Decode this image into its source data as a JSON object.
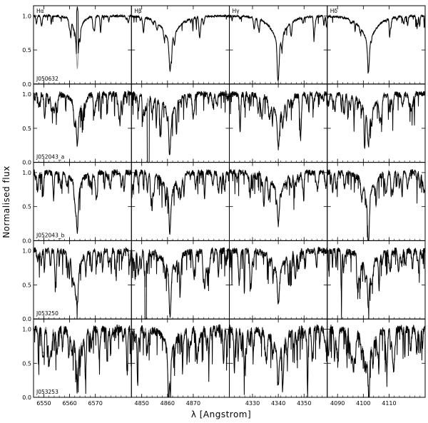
{
  "chart_data": {
    "type": "line",
    "ylabel": "Normalised flux",
    "xlabel": "λ  [Angstrom]",
    "ylim": [
      0.0,
      1.15
    ],
    "yticks": [
      "0.0",
      "0.5",
      "1.0"
    ],
    "grid": false,
    "columns": [
      {
        "line": "Hα",
        "xlim": [
          6546,
          6584
        ],
        "ticks": [
          6550,
          6560,
          6570
        ],
        "center": 6563
      },
      {
        "line": "Hβ",
        "xlim": [
          4846,
          4884
        ],
        "ticks": [
          4850,
          4860,
          4870
        ],
        "center": 4861
      },
      {
        "line": "Hγ",
        "xlim": [
          4321,
          4359
        ],
        "ticks": [
          4330,
          4340,
          4350
        ],
        "center": 4340
      },
      {
        "line": "Hδ",
        "xlim": [
          4086,
          4124
        ],
        "ticks": [
          4090,
          4100,
          4110
        ],
        "center": 4102
      }
    ],
    "rows": [
      {
        "star": "J050632",
        "noise": 0.35,
        "metal": 0.25,
        "model_offset": 0.0
      },
      {
        "star": "J052043_a",
        "noise": 1.0,
        "metal": 0.6,
        "model_offset": 0.05
      },
      {
        "star": "J052043_b",
        "noise": 1.0,
        "metal": 0.6,
        "model_offset": 0.05
      },
      {
        "star": "J053250",
        "noise": 1.1,
        "metal": 0.7,
        "model_offset": 0.08
      },
      {
        "star": "J053253",
        "noise": 1.4,
        "metal": 0.9,
        "model_offset": 0.1
      }
    ],
    "series": [
      {
        "role": "observed",
        "color": "#000000"
      },
      {
        "role": "model",
        "color": "#999999"
      }
    ]
  }
}
